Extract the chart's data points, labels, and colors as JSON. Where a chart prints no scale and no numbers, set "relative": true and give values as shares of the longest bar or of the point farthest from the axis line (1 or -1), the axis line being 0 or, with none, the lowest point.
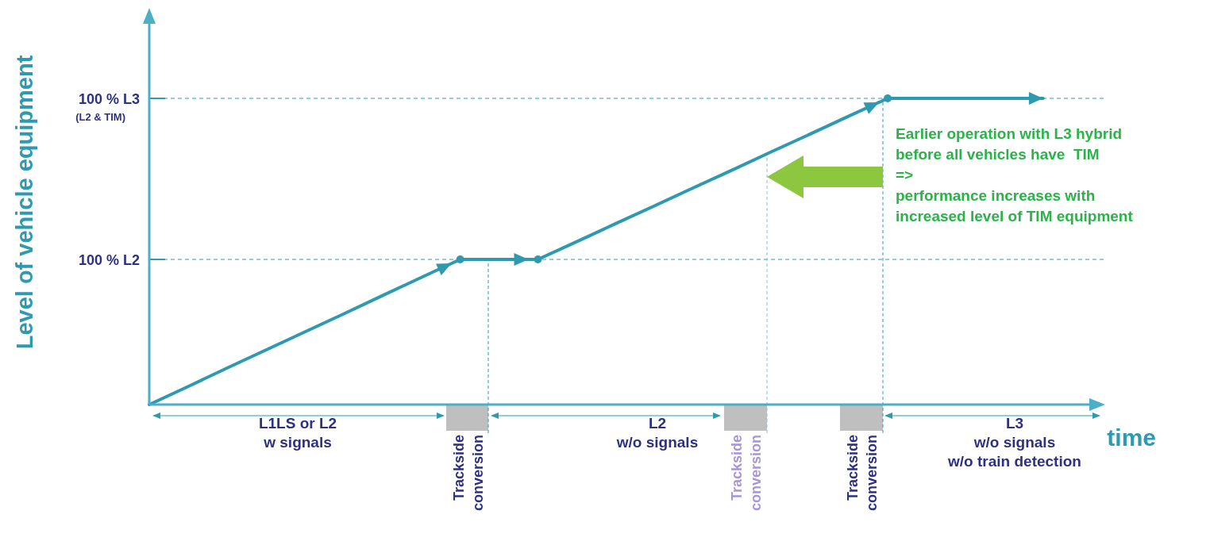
{
  "chart_data": {
    "type": "line",
    "relative": true,
    "xlabel": "time",
    "ylabel": "Level of vehicle equipment",
    "categories": [
      null,
      null,
      null,
      null,
      null,
      null,
      null,
      null,
      null,
      null,
      null,
      null,
      null,
      null,
      null,
      null,
      null,
      null,
      null,
      null,
      null,
      null,
      null,
      null
    ],
    "series": [
      {
        "color": "#2e9ab0",
        "values": [
          0,
          0.059,
          0.119,
          0.178,
          0.237,
          0.296,
          0.356,
          0.415,
          0.474,
          0.474,
          0.474,
          0.532,
          0.591,
          0.649,
          0.708,
          0.766,
          0.825,
          0.883,
          0.942,
          1,
          1,
          1,
          1,
          1
        ]
      }
    ],
    "ref_lines": [
      {
        "axis": "y",
        "value": 0.474,
        "label": "100 % L2",
        "color": "#2e9ab0",
        "line_style": "dashed"
      },
      {
        "axis": "y",
        "value": 1,
        "label": "100 % L3\n(L2 & TIM)",
        "color": "#2e9ab0",
        "line_style": "dashed"
      }
    ],
    "annotations": [
      "L1LS or L2\nw signals",
      "L2\nw/o signals",
      "L3\nw/o signals\nw/o train detection",
      "Trackside\nconversion",
      "Trackside\nconversion",
      "Trackside\nconversion",
      "Earlier operation with L3 hybrid\nbefore all vehicles have  TIM\n=>\nperformance increases with\nincreased level of TIM equipment"
    ]
  }
}
